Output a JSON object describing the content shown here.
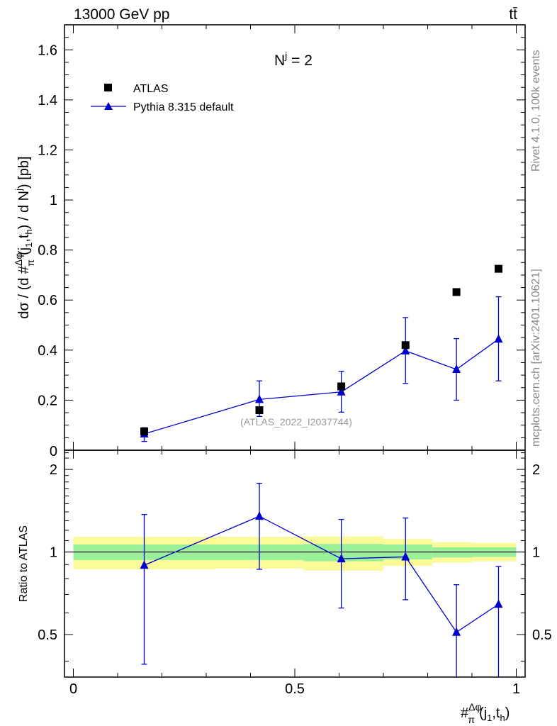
{
  "header": {
    "energy_label": "13000 GeV pp",
    "process_label": "tt̄"
  },
  "side_labels": {
    "rivet": "Rivet 4.1.0,  100k events",
    "mcplots": "mcplots.cern.ch [arXiv:2401.10621]"
  },
  "main_panel": {
    "annotation": "N",
    "annotation_sup": "j",
    "annotation_value": " = 2",
    "watermark": "(ATLAS_2022_I2037744)",
    "ylabel_parts": [
      "dσ / (d #",
      "Δφ",
      "π",
      "(j",
      "1",
      ",t",
      "h",
      ") / d N",
      "j",
      ") [pb]"
    ],
    "legend": {
      "data_label": "ATLAS",
      "mc_label": "Pythia 8.315 default"
    }
  },
  "ratio_panel": {
    "ylabel": "Ratio to ATLAS"
  },
  "xlabel_parts": [
    "#",
    "Δφ",
    "π",
    "(j",
    "1",
    ",t",
    "h",
    ")"
  ],
  "colors": {
    "mc": "#0000cc",
    "data": "#000000",
    "band_inner": "#99f099",
    "band_outer": "#fafa99"
  },
  "chart_data": [
    {
      "type": "scatter",
      "panel": "main",
      "title": "",
      "xlim": [
        -0.02,
        1.02
      ],
      "ylim": [
        0,
        1.7
      ],
      "yticks": [
        0.2,
        0.4,
        0.6,
        0.8,
        1,
        1.2,
        1.4,
        1.6
      ],
      "ytick_labels": [
        "0.2",
        "0.4",
        "0.6",
        "0.8",
        "1",
        "1.2",
        "1.4",
        "1.6"
      ],
      "ytick_zero_label": "0",
      "series": [
        {
          "name": "ATLAS",
          "marker": "square",
          "x": [
            0.16,
            0.42,
            0.605,
            0.75,
            0.865,
            0.96
          ],
          "y": [
            0.075,
            0.16,
            0.255,
            0.42,
            0.632,
            0.725
          ],
          "yerr": [
            0.005,
            0.007,
            0.01,
            0.015,
            0.015,
            0.015
          ]
        },
        {
          "name": "Pythia 8.315 default",
          "marker": "triangle",
          "line": true,
          "x": [
            0.16,
            0.42,
            0.605,
            0.75,
            0.865,
            0.96
          ],
          "y": [
            0.065,
            0.203,
            0.233,
            0.397,
            0.323,
            0.444
          ],
          "ylo": [
            0.035,
            0.135,
            0.152,
            0.267,
            0.2,
            0.277
          ],
          "yhi": [
            0.09,
            0.277,
            0.315,
            0.53,
            0.446,
            0.613
          ]
        }
      ]
    },
    {
      "type": "scatter",
      "panel": "ratio",
      "xlim": [
        -0.02,
        1.02
      ],
      "ylim": [
        0.35,
        2.35
      ],
      "yticks": [
        0.5,
        1,
        2
      ],
      "ytick_labels": [
        "0.5",
        "1",
        "2"
      ],
      "xticks": [
        0,
        0.5,
        1
      ],
      "xtick_labels": [
        "0",
        "0.5",
        "1"
      ],
      "reference_line": 1,
      "bands": {
        "edges": [
          0,
          0.32,
          0.52,
          0.7,
          0.81,
          0.9,
          1.0
        ],
        "inner_lo": [
          0.935,
          0.935,
          0.925,
          0.94,
          0.955,
          0.96
        ],
        "inner_hi": [
          1.065,
          1.065,
          1.07,
          1.065,
          1.04,
          1.04
        ],
        "outer_lo": [
          0.865,
          0.87,
          0.855,
          0.89,
          0.915,
          0.925
        ],
        "outer_hi": [
          1.135,
          1.135,
          1.14,
          1.115,
          1.085,
          1.08
        ]
      },
      "series": [
        {
          "name": "Pythia 8.315 default",
          "marker": "triangle",
          "line": true,
          "x": [
            0.16,
            0.42,
            0.605,
            0.75,
            0.865,
            0.96
          ],
          "y": [
            0.895,
            1.35,
            0.945,
            0.96,
            0.51,
            0.645
          ],
          "ylo": [
            0.39,
            0.865,
            0.625,
            0.67,
            0.35,
            0.35
          ],
          "yhi": [
            1.37,
            1.78,
            1.315,
            1.33,
            0.76,
            0.885
          ]
        }
      ]
    }
  ]
}
